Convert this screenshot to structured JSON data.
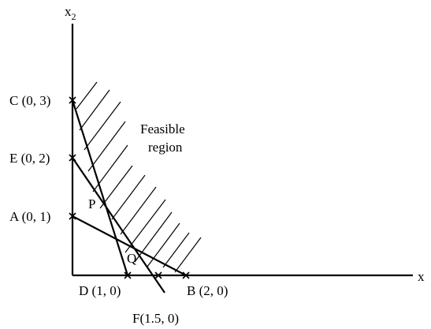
{
  "axes": {
    "x_label": "x",
    "y_label": "x",
    "y_label_sub": "2"
  },
  "points": {
    "C": "C (0, 3)",
    "E": "E (0, 2)",
    "A": "A (0, 1)",
    "D": "D (1, 0)",
    "B": "B (2, 0)",
    "F": "F(1.5, 0)",
    "P": "P",
    "Q": "Q"
  },
  "region": {
    "line1": "Feasible",
    "line2": "region"
  }
}
